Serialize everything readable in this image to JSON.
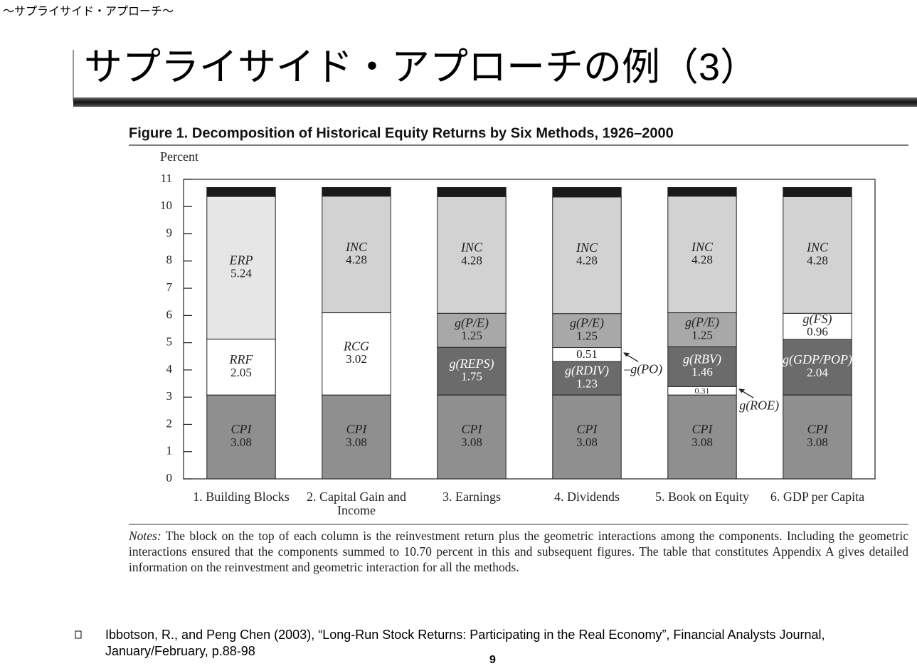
{
  "header": "～サプライサイド・アプローチ～",
  "slide_title": "サプライサイド・アプローチの例（3）",
  "chart_data": {
    "type": "stacked-bar",
    "title": "Figure 1.  Decomposition of Historical Equity Returns by Six Methods, 1926–2000",
    "ylabel": "Percent",
    "categories": [
      "1. Building Blocks",
      "2. Capital Gain and Income",
      "3. Earnings",
      "4. Dividends",
      "5. Book on Equity",
      "6. GDP per Capita"
    ],
    "ylim": [
      0,
      11
    ],
    "yticks": [
      0,
      1,
      2,
      3,
      4,
      5,
      6,
      7,
      8,
      9,
      10,
      11
    ],
    "series": [
      {
        "name": "CPI",
        "color": "#8f8f8f",
        "values": [
          3.08,
          3.08,
          3.08,
          3.08,
          3.08,
          3.08
        ]
      },
      {
        "name": "RRF",
        "color": "#ffffff",
        "values": [
          2.05,
          null,
          null,
          null,
          null,
          null
        ]
      },
      {
        "name": "RCG",
        "color": "#ffffff",
        "values": [
          null,
          3.02,
          null,
          null,
          null,
          null
        ]
      },
      {
        "name": "g(REPS)",
        "color": "#6b6b6b",
        "values": [
          null,
          null,
          1.75,
          null,
          null,
          null
        ]
      },
      {
        "name": "g(RDIV)",
        "color": "#6b6b6b",
        "values": [
          null,
          null,
          null,
          1.23,
          null,
          null
        ]
      },
      {
        "name": "g(ROE)",
        "color": "#ffffff",
        "values": [
          null,
          null,
          null,
          null,
          0.31,
          null
        ]
      },
      {
        "name": "g(RBV)",
        "color": "#6b6b6b",
        "values": [
          null,
          null,
          null,
          null,
          1.46,
          null
        ]
      },
      {
        "name": "g(GDP/POP)",
        "color": "#6b6b6b",
        "values": [
          null,
          null,
          null,
          null,
          null,
          2.04
        ]
      },
      {
        "name": "–g(PO)",
        "color": "#ffffff",
        "values": [
          null,
          null,
          null,
          0.51,
          null,
          null
        ]
      },
      {
        "name": "ERP",
        "color": "#e6e6e6",
        "values": [
          5.24,
          null,
          null,
          null,
          null,
          null
        ]
      },
      {
        "name": "g(P/E)",
        "color": "#a8a8a8",
        "values": [
          null,
          null,
          1.25,
          1.25,
          1.25,
          null
        ]
      },
      {
        "name": "g(FS)",
        "color": "#ffffff",
        "values": [
          null,
          null,
          null,
          null,
          null,
          0.96
        ]
      },
      {
        "name": "INC",
        "color": "#d2d2d2",
        "values": [
          null,
          4.28,
          4.28,
          4.28,
          4.28,
          4.28
        ]
      },
      {
        "color": "#1a1a1a",
        "values": [
          0.33,
          0.32,
          0.34,
          0.35,
          0.32,
          0.34
        ]
      }
    ]
  },
  "notes_label": "Notes:",
  "notes": "The block on the top of each column is the reinvestment return plus the geometric interactions among the components. Including the geometric interactions ensured that the components summed to 10.70 percent in this and subsequent figures. The table that constitutes Appendix A gives detailed information on the reinvestment and geometric interaction for all the methods.",
  "citation": "Ibbotson, R., and Peng Chen (2003), “Long-Run Stock Returns: Participating in the Real Economy”, Financial Analysts Journal, January/February, p.88-98",
  "page_number": "9"
}
